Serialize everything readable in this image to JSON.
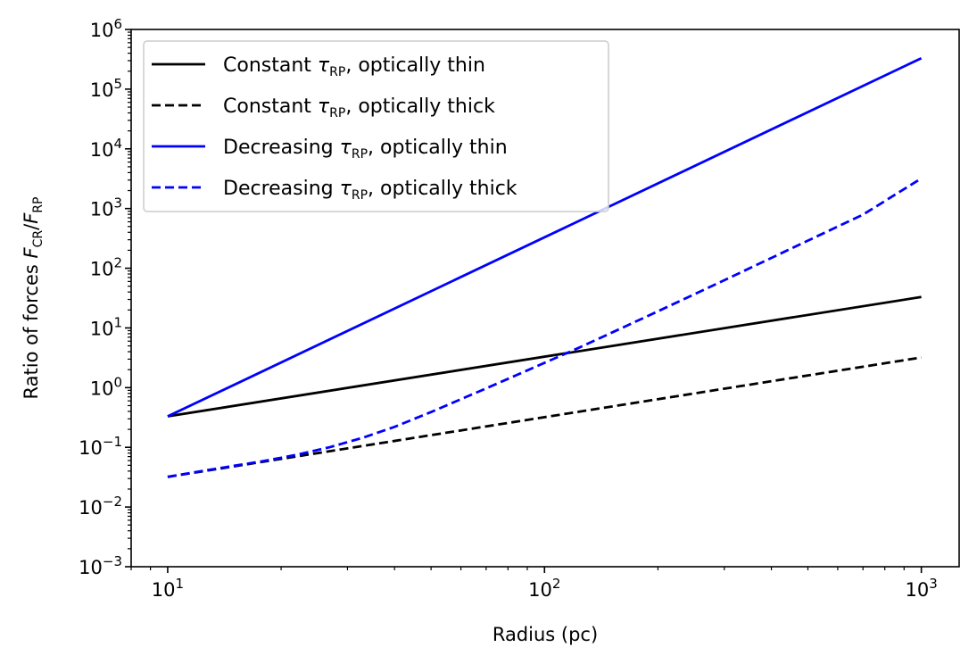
{
  "chart_data": {
    "type": "line",
    "xlabel": {
      "text": "Radius (pc)"
    },
    "ylabel": {
      "prefix": "Ratio of forces ",
      "num_sym": "F",
      "num_sub": "CR",
      "slash": "/",
      "den_sym": "F",
      "den_sub": "RP"
    },
    "xscale": "log",
    "yscale": "log",
    "xlim": [
      8.0,
      1260
    ],
    "ylim": [
      0.001,
      1000000
    ],
    "x_ticks": [
      10,
      100,
      1000
    ],
    "x_tick_labels": [
      {
        "base": "10",
        "exp": "1"
      },
      {
        "base": "10",
        "exp": "2"
      },
      {
        "base": "10",
        "exp": "3"
      }
    ],
    "y_ticks": [
      0.001,
      0.01,
      0.1,
      1,
      10,
      100,
      1000,
      10000,
      100000,
      1000000
    ],
    "y_tick_labels": [
      {
        "base": "10",
        "exp": "−3"
      },
      {
        "base": "10",
        "exp": "−2"
      },
      {
        "base": "10",
        "exp": "−1"
      },
      {
        "base": "10",
        "exp": "0"
      },
      {
        "base": "10",
        "exp": "1"
      },
      {
        "base": "10",
        "exp": "2"
      },
      {
        "base": "10",
        "exp": "3"
      },
      {
        "base": "10",
        "exp": "4"
      },
      {
        "base": "10",
        "exp": "5"
      },
      {
        "base": "10",
        "exp": "6"
      }
    ],
    "grid": false,
    "legend_position": "top-left",
    "series": [
      {
        "label": {
          "pre": "Constant ",
          "sym": "τ",
          "sub": "RP",
          "post": ", optically thin"
        },
        "color": "#000000",
        "style": "solid",
        "x": [
          10,
          1000
        ],
        "y": [
          0.33,
          33
        ]
      },
      {
        "label": {
          "pre": "Constant ",
          "sym": "τ",
          "sub": "RP",
          "post": ", optically thick"
        },
        "color": "#000000",
        "style": "dashed",
        "x": [
          10,
          1000
        ],
        "y": [
          0.032,
          3.2
        ]
      },
      {
        "label": {
          "pre": "Decreasing ",
          "sym": "τ",
          "sub": "RP",
          "post": ", optically thin"
        },
        "color": "#0000ff",
        "style": "solid",
        "x": [
          10,
          1000
        ],
        "y": [
          0.33,
          330000
        ]
      },
      {
        "label": {
          "pre": "Decreasing ",
          "sym": "τ",
          "sub": "RP",
          "post": ", optically thick"
        },
        "color": "#0000ff",
        "style": "dashed",
        "x": [
          10,
          12,
          15,
          18,
          22,
          27,
          33,
          40,
          50,
          60,
          70,
          85,
          100,
          120,
          150,
          200,
          300,
          500,
          700,
          1000
        ],
        "y": [
          0.032,
          0.039,
          0.049,
          0.059,
          0.075,
          0.101,
          0.145,
          0.22,
          0.39,
          0.64,
          0.97,
          1.66,
          2.6,
          4.3,
          8.2,
          19,
          63,
          290,
          790,
          3200
        ]
      }
    ]
  }
}
